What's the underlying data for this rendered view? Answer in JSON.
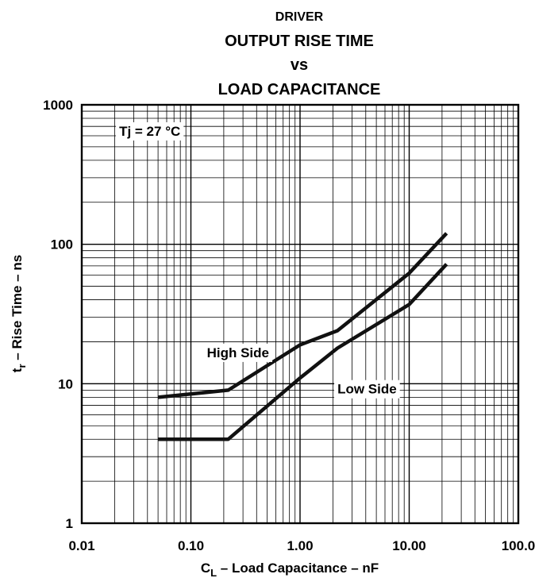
{
  "chart_data": {
    "type": "line",
    "title_lines": [
      "DRIVER",
      "OUTPUT RISE TIME",
      "vs",
      "LOAD CAPACITANCE"
    ],
    "xlabel": "C",
    "xlabel_sub": "L",
    "xlabel_rest": " – Load Capacitance – nF",
    "ylabel": "t",
    "ylabel_sub": "r",
    "ylabel_rest": " – Rise Time – ns",
    "x_scale": "log",
    "y_scale": "log",
    "xlim": [
      0.01,
      100
    ],
    "ylim": [
      1,
      1000
    ],
    "x_ticks": [
      0.01,
      0.1,
      1,
      10,
      100
    ],
    "x_tick_labels": [
      "0.01",
      "0.10",
      "1.00",
      "10.00",
      "100.0"
    ],
    "y_ticks": [
      1,
      10,
      100,
      1000
    ],
    "y_tick_labels": [
      "1",
      "10",
      "100",
      "1000"
    ],
    "grid": true,
    "series": [
      {
        "name": "High Side",
        "x": [
          0.05,
          0.22,
          1.0,
          2.2,
          10,
          22
        ],
        "y": [
          8,
          9,
          19,
          24,
          62,
          120
        ]
      },
      {
        "name": "Low Side",
        "x": [
          0.05,
          0.22,
          1.0,
          2.2,
          10,
          22
        ],
        "y": [
          4,
          4,
          11,
          18,
          37,
          72
        ]
      }
    ],
    "annotations": [
      {
        "text": "Tj = 27 °C",
        "x": 0.022,
        "y": 600
      },
      {
        "text": "High Side",
        "x": 0.14,
        "y": 15.5
      },
      {
        "text": "Low Side",
        "x": 2.2,
        "y": 8.5
      }
    ],
    "colors": {
      "line": "#111111",
      "grid": "#000000",
      "background": "#ffffff"
    }
  }
}
